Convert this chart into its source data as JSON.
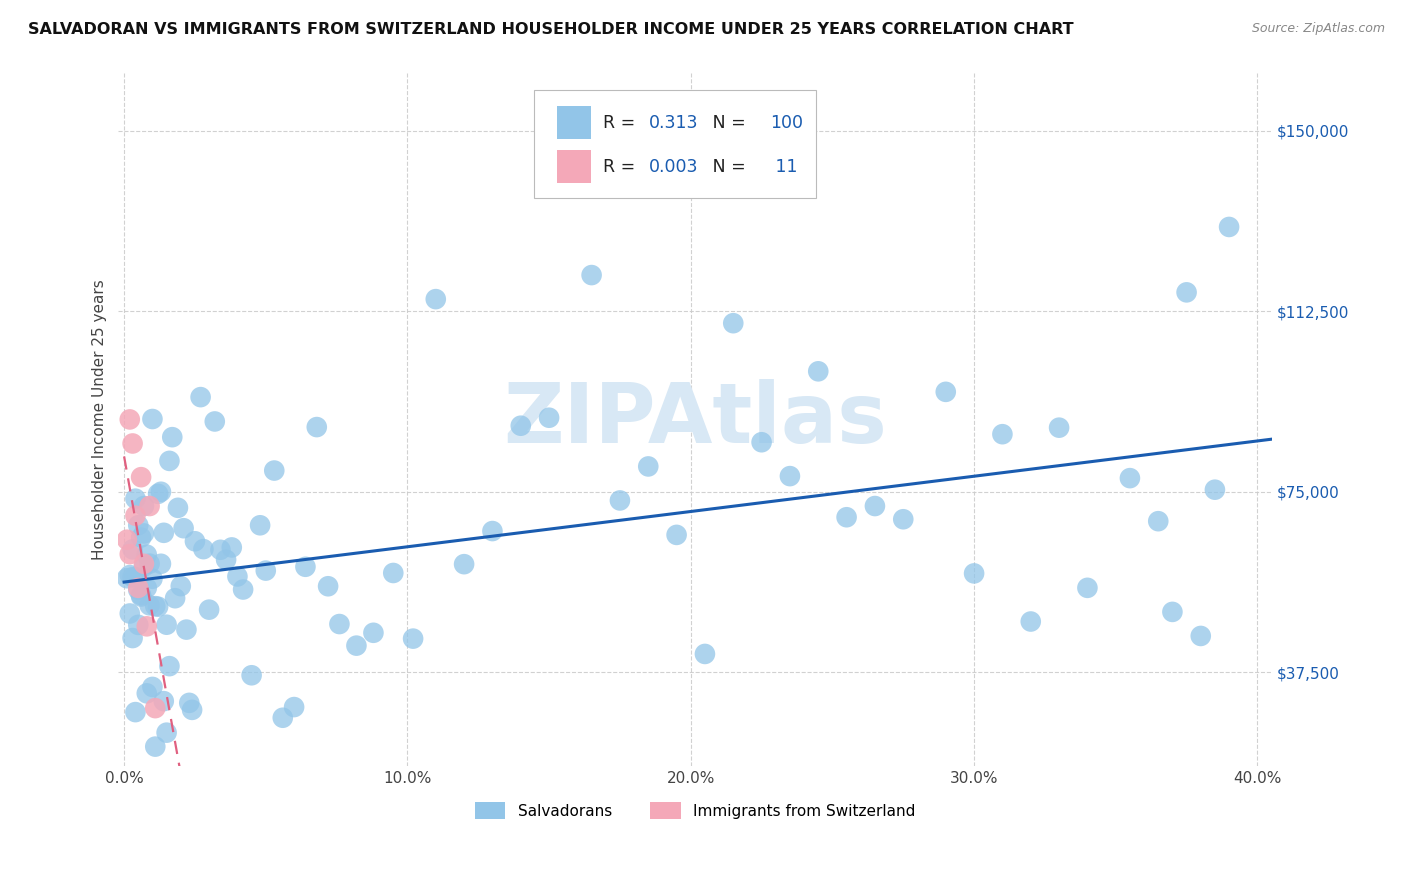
{
  "title": "SALVADORAN VS IMMIGRANTS FROM SWITZERLAND HOUSEHOLDER INCOME UNDER 25 YEARS CORRELATION CHART",
  "source": "Source: ZipAtlas.com",
  "ylabel": "Householder Income Under 25 years",
  "xlim": [
    -0.002,
    0.405
  ],
  "ylim": [
    18000,
    162000
  ],
  "yticks": [
    37500,
    75000,
    112500,
    150000
  ],
  "ytick_labels": [
    "$37,500",
    "$75,000",
    "$112,500",
    "$150,000"
  ],
  "xticks": [
    0.0,
    0.1,
    0.2,
    0.3,
    0.4
  ],
  "xtick_labels": [
    "0.0%",
    "10.0%",
    "20.0%",
    "30.0%",
    "40.0%"
  ],
  "salvadoran_R": "0.313",
  "salvadoran_N": "100",
  "swiss_R": "0.003",
  "swiss_N": "11",
  "blue_color": "#92C5E8",
  "pink_color": "#F4A8B8",
  "blue_line_color": "#1A5CB0",
  "pink_line_color": "#E06080",
  "background_color": "#FFFFFF",
  "grid_color": "#CCCCCC",
  "watermark_color": "#D8E8F5",
  "title_color": "#111111",
  "source_color": "#888888",
  "ylabel_color": "#444444",
  "tick_color": "#444444",
  "ytick_color": "#1A5CB0"
}
